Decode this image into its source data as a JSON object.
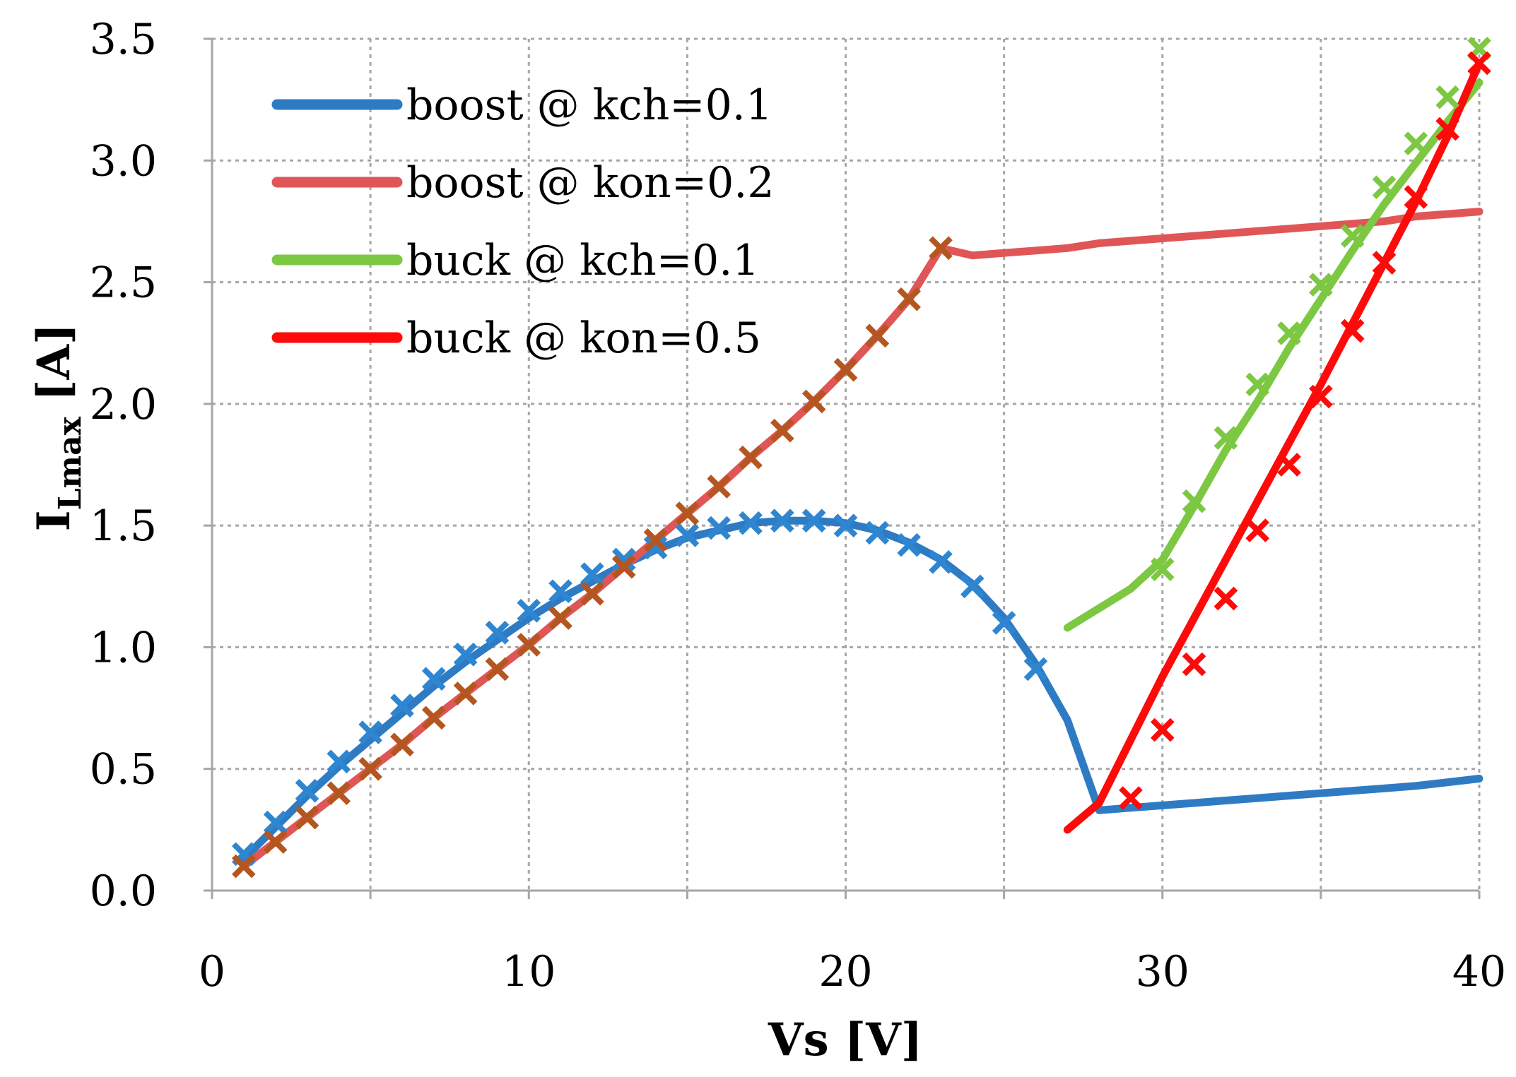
{
  "chart_data": {
    "type": "line",
    "xlabel": "Vs [V]",
    "ylabel": {
      "main": "I",
      "sub": "Lmax",
      "unit": " [A]"
    },
    "xlim": [
      0,
      40
    ],
    "ylim": [
      0,
      3.5
    ],
    "x_ticks": [
      "0",
      "10",
      "20",
      "30",
      "40"
    ],
    "y_ticks": [
      "0.0",
      "0.5",
      "1.0",
      "1.5",
      "2.0",
      "2.5",
      "3.0",
      "3.5"
    ],
    "x_gridlines_every": 5,
    "grid": true,
    "legend_position": "top-left",
    "series": [
      {
        "name": "boost @ kch=0.1",
        "style": "line",
        "color": "#2E7BC4",
        "x": [
          1,
          2,
          3,
          4,
          5,
          6,
          7,
          8,
          9,
          10,
          11,
          12,
          13,
          14,
          15,
          16,
          17,
          18,
          19,
          20,
          21,
          22,
          23,
          24,
          25,
          26,
          27,
          28,
          29,
          30,
          31,
          32,
          33,
          34,
          35,
          36,
          37,
          38,
          39,
          40
        ],
        "y": [
          0.13,
          0.26,
          0.39,
          0.51,
          0.62,
          0.73,
          0.84,
          0.94,
          1.03,
          1.12,
          1.2,
          1.27,
          1.34,
          1.4,
          1.45,
          1.48,
          1.51,
          1.52,
          1.52,
          1.51,
          1.48,
          1.43,
          1.36,
          1.26,
          1.12,
          0.93,
          0.7,
          0.33,
          0.34,
          0.35,
          0.36,
          0.37,
          0.38,
          0.39,
          0.4,
          0.41,
          0.42,
          0.43,
          0.445,
          0.46
        ]
      },
      {
        "name": "boost @ kon=0.2",
        "style": "line",
        "color": "#E05656",
        "x": [
          1,
          2,
          3,
          4,
          5,
          6,
          7,
          8,
          9,
          10,
          11,
          12,
          13,
          14,
          15,
          16,
          17,
          18,
          19,
          20,
          21,
          22,
          23,
          24,
          25,
          26,
          27,
          28,
          29,
          30,
          31,
          32,
          33,
          34,
          35,
          36,
          37,
          38,
          39,
          40
        ],
        "y": [
          0.1,
          0.2,
          0.3,
          0.4,
          0.5,
          0.6,
          0.71,
          0.81,
          0.91,
          1.01,
          1.12,
          1.22,
          1.33,
          1.44,
          1.55,
          1.66,
          1.78,
          1.89,
          2.01,
          2.14,
          2.28,
          2.43,
          2.64,
          2.61,
          2.62,
          2.63,
          2.64,
          2.66,
          2.67,
          2.68,
          2.69,
          2.7,
          2.71,
          2.72,
          2.73,
          2.74,
          2.75,
          2.77,
          2.78,
          2.79
        ]
      },
      {
        "name": "buck @ kch=0.1",
        "style": "line",
        "color": "#7CC843",
        "x": [
          27,
          28,
          29,
          30,
          31,
          32,
          33,
          34,
          35,
          36,
          37,
          38,
          39,
          40
        ],
        "y": [
          1.08,
          1.16,
          1.24,
          1.36,
          1.58,
          1.81,
          2.01,
          2.23,
          2.43,
          2.63,
          2.82,
          2.99,
          3.16,
          3.32
        ]
      },
      {
        "name": "buck @ kon=0.5",
        "style": "line",
        "color": "#FF0A0A",
        "x": [
          27,
          28,
          29,
          30,
          31,
          32,
          33,
          34,
          35,
          36,
          37,
          38,
          39,
          40
        ],
        "y": [
          0.25,
          0.36,
          0.62,
          0.88,
          1.12,
          1.36,
          1.6,
          1.84,
          2.08,
          2.33,
          2.58,
          2.83,
          3.1,
          3.4
        ]
      },
      {
        "style": "markers",
        "marker": "x",
        "color": "#2E86D1",
        "x": [
          1,
          2,
          3,
          4,
          5,
          6,
          7,
          8,
          9,
          10,
          11,
          12,
          13,
          14,
          15,
          16,
          17,
          18,
          19,
          20,
          21,
          22,
          23,
          24,
          25,
          26
        ],
        "y": [
          0.15,
          0.28,
          0.41,
          0.53,
          0.65,
          0.76,
          0.87,
          0.97,
          1.06,
          1.15,
          1.23,
          1.3,
          1.36,
          1.41,
          1.46,
          1.49,
          1.51,
          1.52,
          1.52,
          1.5,
          1.47,
          1.42,
          1.35,
          1.25,
          1.1,
          0.91
        ]
      },
      {
        "style": "markers",
        "marker": "x",
        "color": "#B3561F",
        "x": [
          1,
          2,
          3,
          4,
          5,
          6,
          7,
          8,
          9,
          10,
          11,
          12,
          13,
          14,
          15,
          16,
          17,
          18,
          19,
          20,
          21,
          22,
          23
        ],
        "y": [
          0.1,
          0.2,
          0.3,
          0.4,
          0.5,
          0.6,
          0.71,
          0.81,
          0.91,
          1.01,
          1.12,
          1.22,
          1.33,
          1.44,
          1.55,
          1.66,
          1.78,
          1.89,
          2.01,
          2.14,
          2.28,
          2.43,
          2.64
        ]
      },
      {
        "style": "markers",
        "marker": "x",
        "color": "#7CC843",
        "x": [
          30,
          31,
          32,
          33,
          34,
          35,
          36,
          37,
          38,
          39,
          40
        ],
        "y": [
          1.32,
          1.6,
          1.86,
          2.08,
          2.29,
          2.49,
          2.69,
          2.89,
          3.07,
          3.26,
          3.46
        ]
      },
      {
        "style": "markers",
        "marker": "x",
        "color": "#FF0A0A",
        "x": [
          29,
          30,
          31,
          32,
          33,
          34,
          35,
          36,
          37,
          38,
          39,
          40
        ],
        "y": [
          0.38,
          0.66,
          0.93,
          1.2,
          1.48,
          1.75,
          2.03,
          2.3,
          2.58,
          2.85,
          3.13,
          3.4
        ]
      }
    ]
  }
}
